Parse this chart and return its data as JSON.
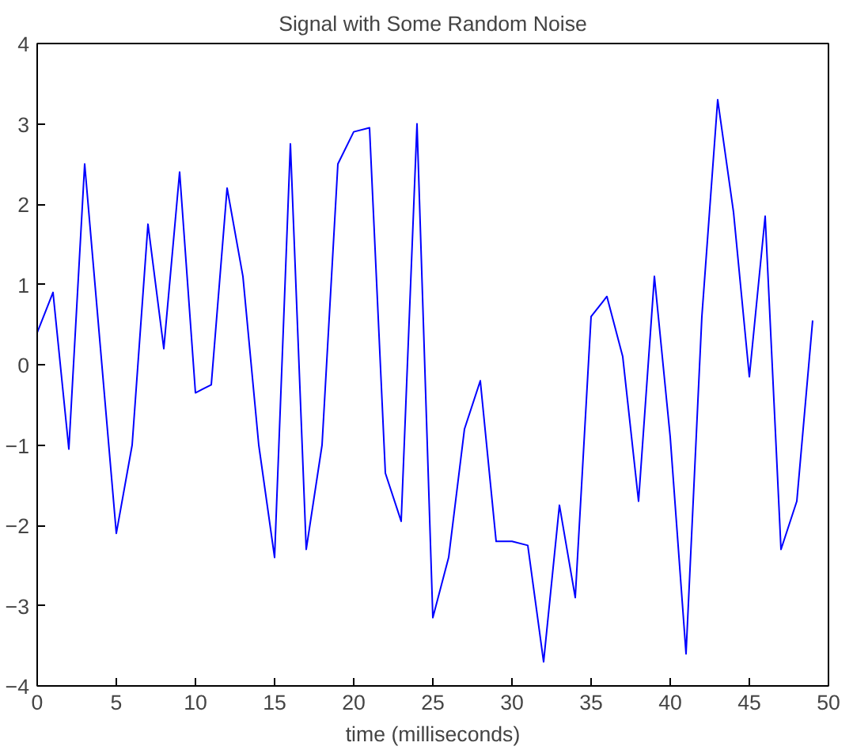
{
  "chart_data": {
    "type": "line",
    "title": "Signal with Some Random Noise",
    "xlabel": "time (milliseconds)",
    "x": [
      0,
      1,
      2,
      3,
      4,
      5,
      6,
      7,
      8,
      9,
      10,
      11,
      12,
      13,
      14,
      15,
      16,
      17,
      18,
      19,
      20,
      21,
      22,
      23,
      24,
      25,
      26,
      27,
      28,
      29,
      30,
      31,
      32,
      33,
      34,
      35,
      36,
      37,
      38,
      39,
      40,
      41,
      42,
      43,
      44,
      45,
      46,
      47,
      48,
      49
    ],
    "series": [
      {
        "color": "#0000ff",
        "values": [
          0.4,
          0.9,
          -1.05,
          2.5,
          0.2,
          -2.1,
          -1.0,
          1.75,
          0.2,
          2.4,
          -0.35,
          -0.25,
          2.2,
          1.1,
          -1.0,
          -2.4,
          2.75,
          -2.3,
          -1.0,
          2.5,
          2.9,
          2.95,
          -1.35,
          -1.95,
          3.0,
          -3.15,
          -2.4,
          -0.8,
          -0.2,
          -2.2,
          -2.2,
          -2.25,
          -3.7,
          -1.75,
          -2.9,
          0.6,
          0.85,
          0.1,
          -1.7,
          1.1,
          -0.9,
          -3.6,
          0.6,
          3.3,
          1.9,
          -0.15,
          1.85,
          -2.3,
          -1.7,
          0.55
        ]
      }
    ],
    "xlim": [
      0,
      50
    ],
    "ylim": [
      -4,
      4
    ],
    "xticks": [
      0,
      5,
      10,
      15,
      20,
      25,
      30,
      35,
      40,
      45,
      50
    ],
    "yticks": [
      -4,
      -3,
      -2,
      -1,
      0,
      1,
      2,
      3,
      4
    ],
    "grid": false,
    "marker": "none",
    "line_style": "solid"
  }
}
